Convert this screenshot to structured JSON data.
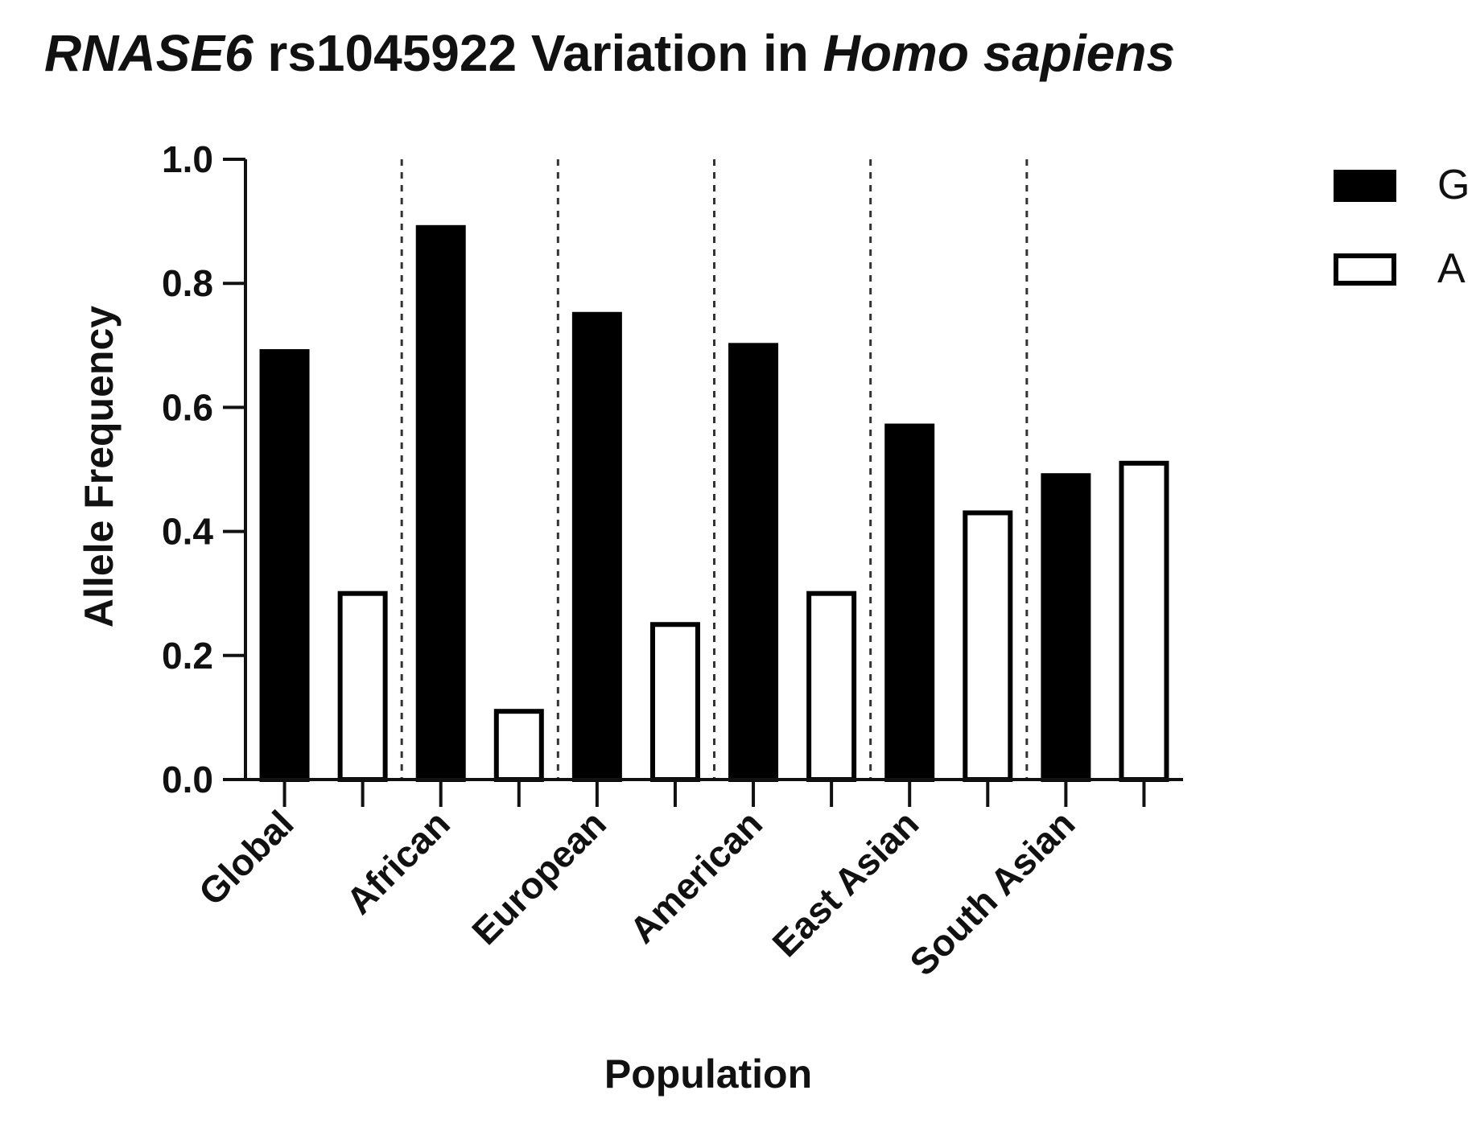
{
  "chart_data": {
    "type": "bar",
    "title": {
      "part1": "RNASE6",
      "part2": " rs1045922 Variation in ",
      "part3": "Homo sapiens"
    },
    "xlabel": "Population",
    "ylabel": "Allele Frequency",
    "ylim": [
      0,
      1.0
    ],
    "yticks": [
      "0.0",
      "0.2",
      "0.4",
      "0.6",
      "0.8",
      "1.0"
    ],
    "grid": false,
    "legend_position": "top-right",
    "categories": [
      "Global",
      "African",
      "European",
      "American",
      "East Asian",
      "South Asian"
    ],
    "series": [
      {
        "name": "G",
        "values": [
          0.69,
          0.89,
          0.75,
          0.7,
          0.57,
          0.49
        ],
        "fill": "#000000"
      },
      {
        "name": "A",
        "values": [
          0.3,
          0.11,
          0.25,
          0.3,
          0.43,
          0.51
        ],
        "fill": "#ffffff"
      }
    ],
    "colors": {
      "axis": "#111111",
      "bar_outline": "#000000",
      "divider": "#333333"
    }
  }
}
